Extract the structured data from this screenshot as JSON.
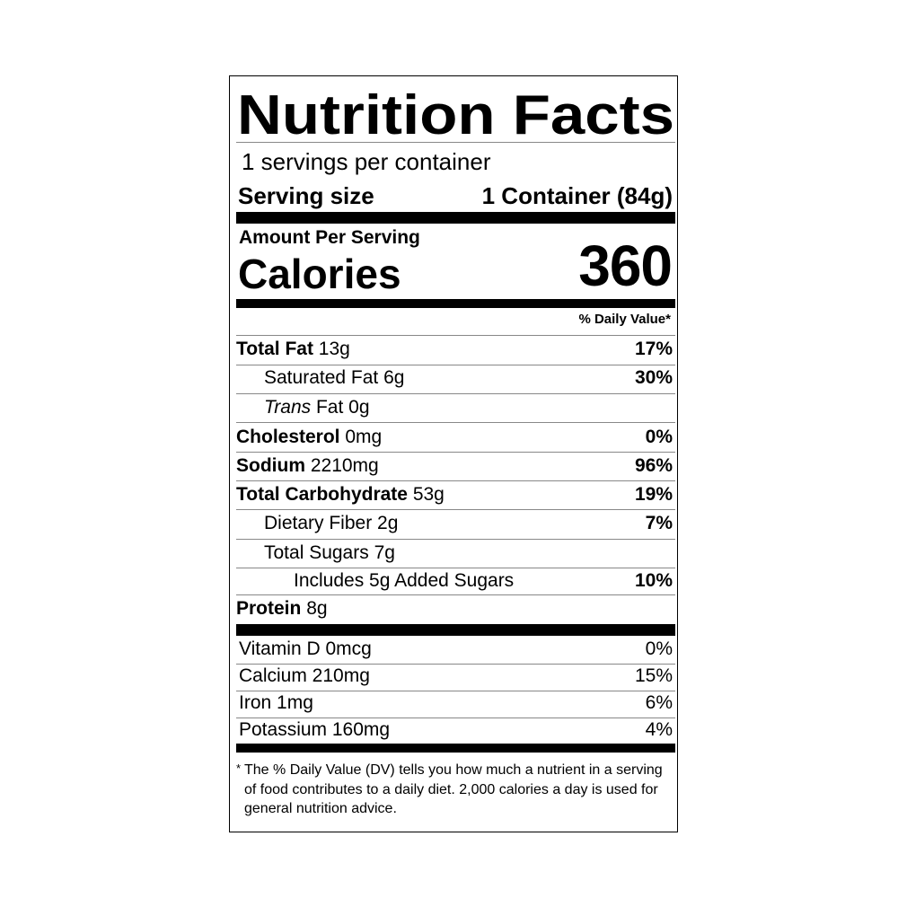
{
  "title": "Nutrition Facts",
  "servings_per_container": "1 servings per container",
  "serving_size": {
    "label": "Serving size",
    "value": "1 Container (84g)"
  },
  "amount_per_serving": "Amount Per Serving",
  "calories": {
    "label": "Calories",
    "value": "360"
  },
  "daily_value_header": "% Daily Value*",
  "nutrients": [
    {
      "name": "Total Fat",
      "amount": "13g",
      "dv": "17%"
    },
    {
      "name": "Saturated Fat",
      "amount": "6g",
      "dv": "30%"
    },
    {
      "name": "Trans",
      "name_suffix": "Fat",
      "amount": "0g",
      "dv": ""
    },
    {
      "name": "Cholesterol",
      "amount": "0mg",
      "dv": "0%"
    },
    {
      "name": "Sodium",
      "amount": "2210mg",
      "dv": "96%"
    },
    {
      "name": "Total Carbohydrate",
      "amount": "53g",
      "dv": "19%"
    },
    {
      "name": "Dietary Fiber",
      "amount": "2g",
      "dv": "7%"
    },
    {
      "name": "Total Sugars",
      "amount": "7g",
      "dv": ""
    },
    {
      "name": "Includes 5g Added Sugars",
      "amount": "",
      "dv": "10%"
    },
    {
      "name": "Protein",
      "amount": "8g",
      "dv": ""
    }
  ],
  "vitamins": [
    {
      "name": "Vitamin D 0mcg",
      "dv": "0%"
    },
    {
      "name": "Calcium 210mg",
      "dv": "15%"
    },
    {
      "name": "Iron 1mg",
      "dv": "6%"
    },
    {
      "name": "Potassium 160mg",
      "dv": "4%"
    }
  ],
  "footnote": {
    "star": "*",
    "text": "The % Daily Value (DV) tells you how much a nutrient in a serving of food contributes to a daily diet. 2,000 calories a day is used for general nutrition advice."
  }
}
